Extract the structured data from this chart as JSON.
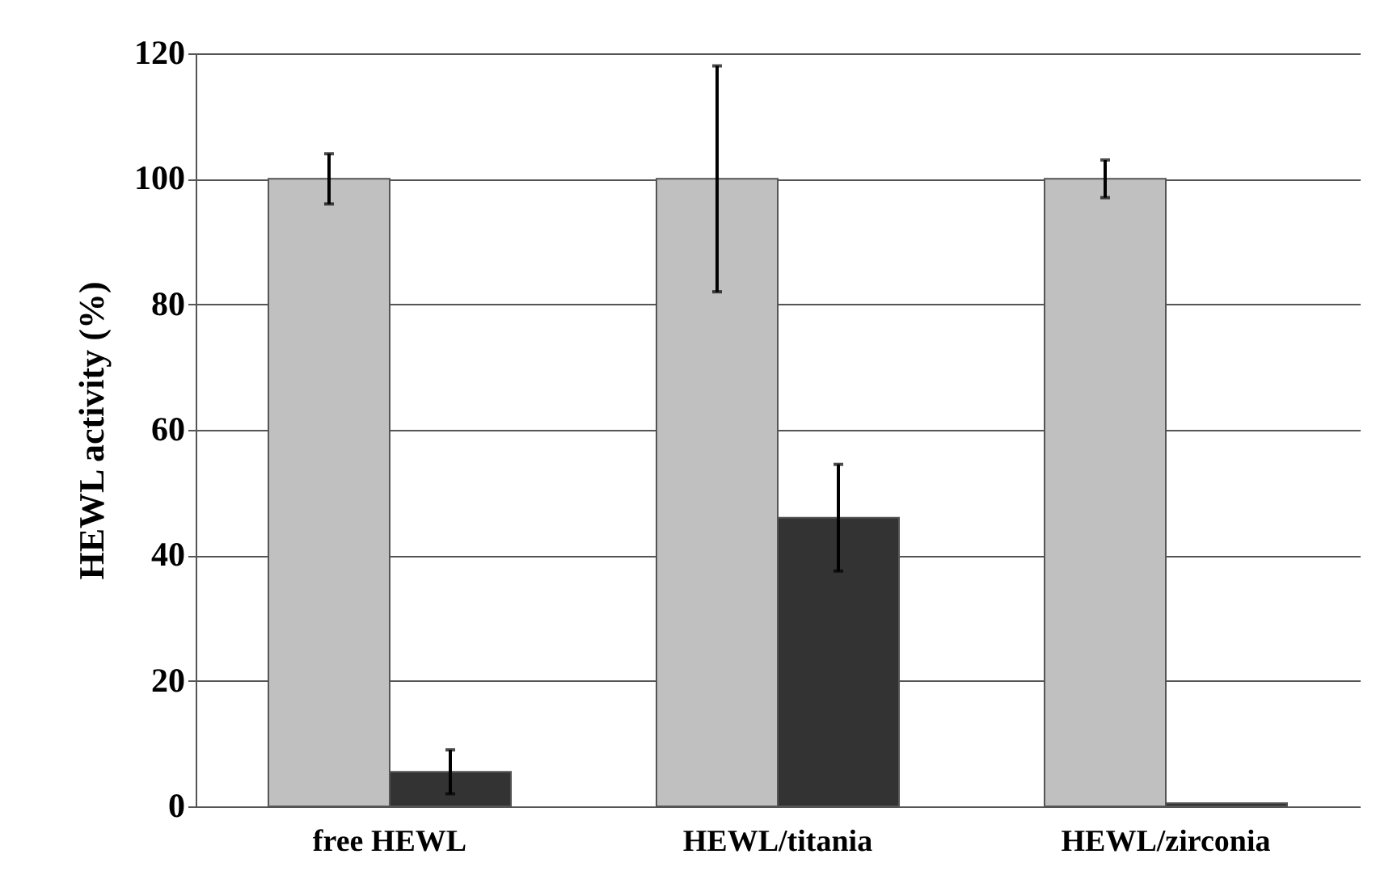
{
  "chart_data": {
    "type": "bar",
    "ylabel": "HEWL activity (%)",
    "categories": [
      "free HEWL",
      "HEWL/titania",
      "HEWL/zirconia"
    ],
    "series": [
      {
        "color": "#c0c0c0",
        "values": [
          100,
          100,
          100
        ],
        "errors": [
          4,
          18,
          3
        ]
      },
      {
        "color": "#333333",
        "values": [
          5.5,
          46,
          0.5
        ],
        "errors": [
          3.5,
          8.5,
          null
        ]
      }
    ],
    "ylim": [
      0,
      120
    ],
    "yticks": [
      0,
      20,
      40,
      60,
      80,
      100,
      120
    ],
    "grid": "y",
    "legend": false
  }
}
